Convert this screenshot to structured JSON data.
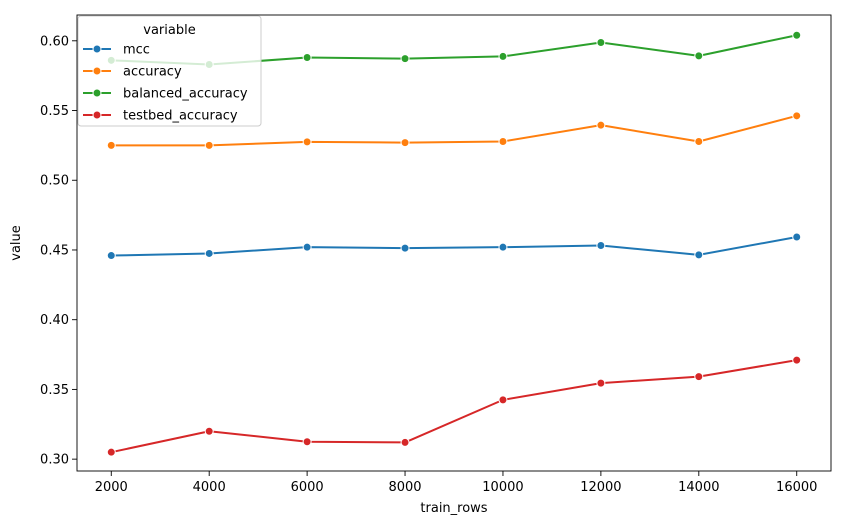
{
  "chart_data": {
    "type": "line",
    "title": "",
    "xlabel": "train_rows",
    "ylabel": "value",
    "xlim": [
      1300,
      16700
    ],
    "ylim": [
      0.2915,
      0.6185
    ],
    "x_ticks": [
      2000,
      4000,
      6000,
      8000,
      10000,
      12000,
      14000,
      16000
    ],
    "x_tick_labels": [
      "2000",
      "4000",
      "6000",
      "8000",
      "10000",
      "12000",
      "14000",
      "16000"
    ],
    "y_ticks": [
      0.3,
      0.35,
      0.4,
      0.45,
      0.5,
      0.55,
      0.6
    ],
    "y_tick_labels": [
      "0.30",
      "0.35",
      "0.40",
      "0.45",
      "0.50",
      "0.55",
      "0.60"
    ],
    "grid": false,
    "legend": {
      "title": "variable",
      "placement": "top-left"
    },
    "x": [
      2000,
      4000,
      6000,
      8000,
      10000,
      12000,
      14000,
      16000
    ],
    "series": [
      {
        "name": "mcc",
        "color": "#1f77b4",
        "values": [
          0.446,
          0.4475,
          0.452,
          0.4513,
          0.452,
          0.4532,
          0.4465,
          0.4593
        ]
      },
      {
        "name": "accuracy",
        "color": "#ff7f0e",
        "values": [
          0.525,
          0.525,
          0.5275,
          0.527,
          0.5278,
          0.5395,
          0.5278,
          0.5462
        ]
      },
      {
        "name": "balanced_accuracy",
        "color": "#2ca02c",
        "values": [
          0.586,
          0.583,
          0.588,
          0.5872,
          0.5888,
          0.5988,
          0.5892,
          0.604
        ]
      },
      {
        "name": "testbed_accuracy",
        "color": "#d62728",
        "values": [
          0.305,
          0.32,
          0.3125,
          0.312,
          0.3425,
          0.3545,
          0.3592,
          0.371
        ]
      }
    ]
  }
}
